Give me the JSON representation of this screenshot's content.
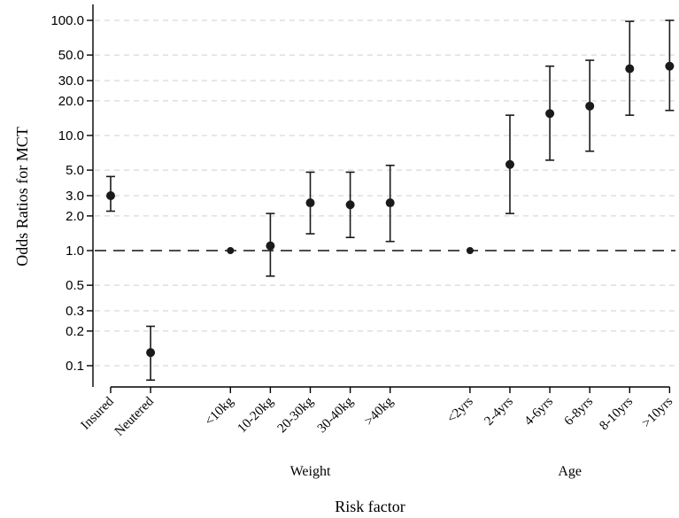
{
  "chart_data": {
    "type": "scatter",
    "subtype": "point-estimate with error bars (confidence intervals)",
    "xlabel": "Risk factor",
    "ylabel": "Odds Ratios for MCT",
    "yscale": "log",
    "ylim": [
      0.07,
      110
    ],
    "yticks": [
      {
        "value": 100,
        "label": "100.0"
      },
      {
        "value": 50,
        "label": "50.0"
      },
      {
        "value": 30,
        "label": "30.0"
      },
      {
        "value": 20,
        "label": "20.0"
      },
      {
        "value": 10,
        "label": "10.0"
      },
      {
        "value": 5,
        "label": "5.0"
      },
      {
        "value": 3,
        "label": "3.0"
      },
      {
        "value": 2,
        "label": "2.0"
      },
      {
        "value": 1,
        "label": "1.0"
      },
      {
        "value": 0.5,
        "label": "0.5"
      },
      {
        "value": 0.3,
        "label": "0.3"
      },
      {
        "value": 0.2,
        "label": "0.2"
      },
      {
        "value": 0.1,
        "label": "0.1"
      }
    ],
    "grid": "dashed horizontal at major ticks",
    "reference_line": 1.0,
    "categories": [
      "Insured",
      "Neutered",
      "<10kg",
      "10-20kg",
      "20-30kg",
      "30-40kg",
      ">40kg",
      "<2yrs",
      "2-4yrs",
      "4-6yrs",
      "6-8yrs",
      "8-10yrs",
      ">10yrs"
    ],
    "positions": [
      1,
      2,
      4,
      5,
      6,
      7,
      8,
      10,
      11,
      12,
      13,
      14,
      15
    ],
    "groups": [
      {
        "label": "Weight",
        "categories": [
          "<10kg",
          "10-20kg",
          "20-30kg",
          "30-40kg",
          ">40kg"
        ]
      },
      {
        "label": "Age",
        "categories": [
          "<2yrs",
          "2-4yrs",
          "4-6yrs",
          "6-8yrs",
          "8-10yrs",
          ">10yrs"
        ]
      }
    ],
    "points": [
      {
        "category": "Insured",
        "or": 3.0,
        "lower": 2.2,
        "upper": 4.4
      },
      {
        "category": "Neutered",
        "or": 0.13,
        "lower": 0.075,
        "upper": 0.22
      },
      {
        "category": "<10kg",
        "or": 1.0,
        "lower": null,
        "upper": null
      },
      {
        "category": "10-20kg",
        "or": 1.1,
        "lower": 0.6,
        "upper": 2.1
      },
      {
        "category": "20-30kg",
        "or": 2.6,
        "lower": 1.4,
        "upper": 4.8
      },
      {
        "category": "30-40kg",
        "or": 2.5,
        "lower": 1.3,
        "upper": 4.8
      },
      {
        "category": ">40kg",
        "or": 2.6,
        "lower": 1.2,
        "upper": 5.5
      },
      {
        "category": "<2yrs",
        "or": 1.0,
        "lower": null,
        "upper": null
      },
      {
        "category": "2-4yrs",
        "or": 5.6,
        "lower": 2.1,
        "upper": 15.0
      },
      {
        "category": "4-6yrs",
        "or": 15.5,
        "lower": 6.1,
        "upper": 40.0
      },
      {
        "category": "6-8yrs",
        "or": 18.0,
        "lower": 7.3,
        "upper": 45.0
      },
      {
        "category": "8-10yrs",
        "or": 38.0,
        "lower": 15.0,
        "upper": 98.0
      },
      {
        "category": ">10yrs",
        "or": 40.0,
        "lower": 16.5,
        "upper": 100.0
      }
    ],
    "marker_color": "#1a1a1a",
    "grid_color": "#cfcfcf"
  }
}
